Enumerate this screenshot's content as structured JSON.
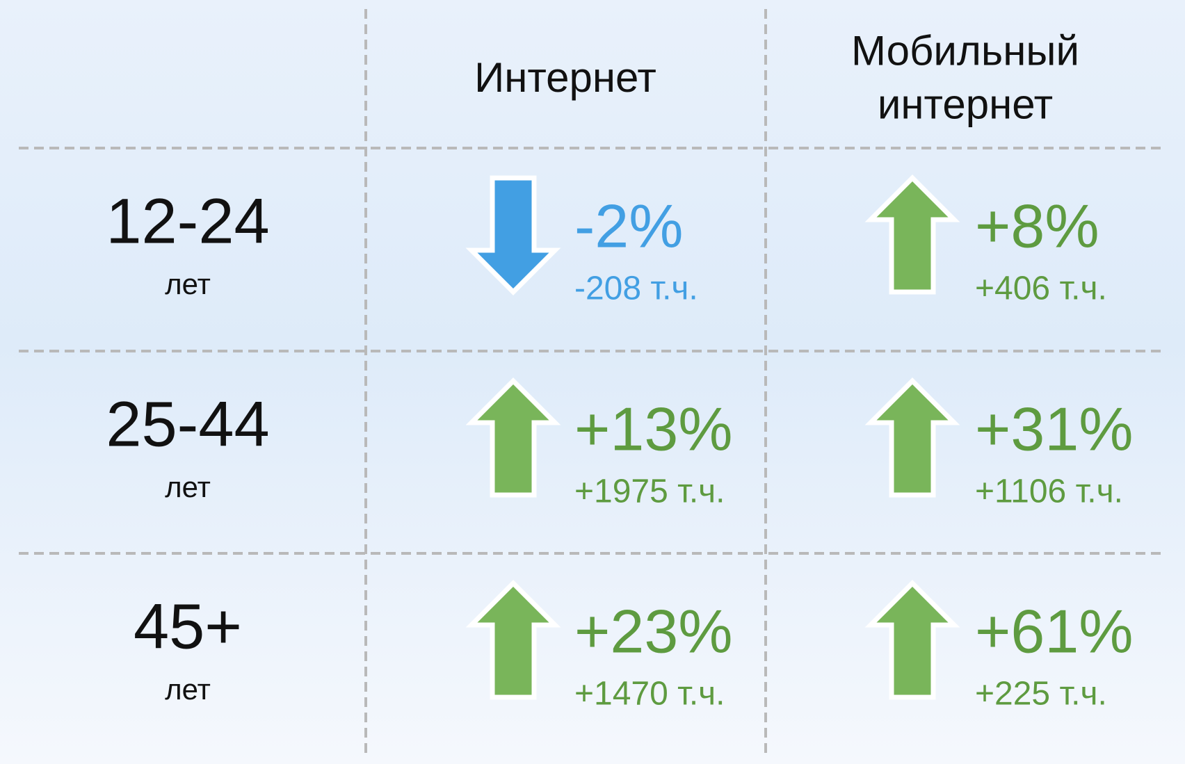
{
  "header": {
    "columns": [
      "Интернет",
      [
        "Мобильный",
        "интернет"
      ]
    ]
  },
  "table": {
    "rows": [
      {
        "label": "12-24",
        "unit": "лет",
        "cells": [
          {
            "percent": "-2%",
            "amount": "-208 т.ч.",
            "arrow": "down",
            "color": "#429fe3",
            "text_color": "#429fe3"
          },
          {
            "percent": "+8%",
            "amount": "+406 т.ч.",
            "arrow": "up",
            "color": "#79b55a",
            "text_color": "#5e9b40"
          }
        ]
      },
      {
        "label": "25-44",
        "unit": "лет",
        "cells": [
          {
            "percent": "+13%",
            "amount": "+1975 т.ч.",
            "arrow": "up",
            "color": "#79b55a",
            "text_color": "#5e9b40"
          },
          {
            "percent": "+31%",
            "amount": "+1106 т.ч.",
            "arrow": "up",
            "color": "#79b55a",
            "text_color": "#5e9b40"
          }
        ]
      },
      {
        "label": "45+",
        "unit": "лет",
        "cells": [
          {
            "percent": "+23%",
            "amount": "+1470 т.ч.",
            "arrow": "up",
            "color": "#79b55a",
            "text_color": "#5e9b40"
          },
          {
            "percent": "+61%",
            "amount": "+225 т.ч.",
            "arrow": "up",
            "color": "#79b55a",
            "text_color": "#5e9b40"
          }
        ]
      }
    ]
  }
}
